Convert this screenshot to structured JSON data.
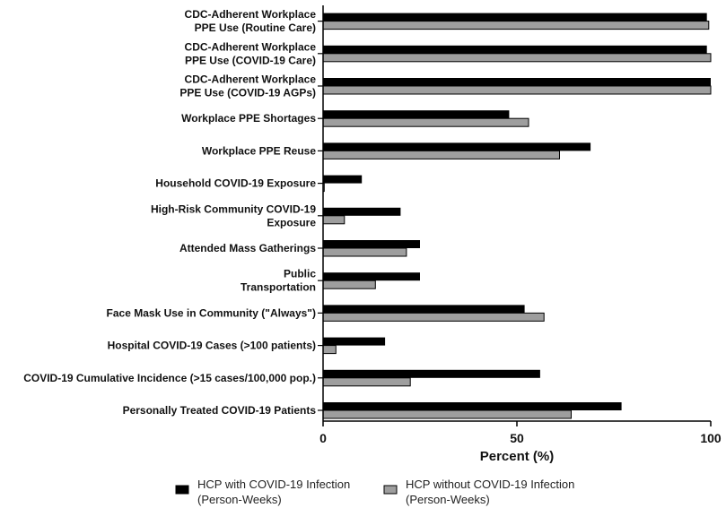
{
  "chart_data": {
    "type": "bar",
    "orientation": "horizontal",
    "categories": [
      [
        "CDC-Adherent Workplace",
        "PPE Use (Routine Care)"
      ],
      [
        "CDC-Adherent Workplace",
        "PPE Use (COVID-19 Care)"
      ],
      [
        "CDC-Adherent Workplace",
        "PPE Use (COVID-19 AGPs)"
      ],
      [
        "Workplace PPE Shortages"
      ],
      [
        "Workplace PPE Reuse"
      ],
      [
        "Household COVID-19 Exposure"
      ],
      [
        "High-Risk Community COVID-19",
        "Exposure"
      ],
      [
        "Attended Mass Gatherings"
      ],
      [
        "Public",
        "Transportation"
      ],
      [
        "Face Mask Use in Community (\"Always\")"
      ],
      [
        "Hospital COVID-19 Cases (>100 patients)"
      ],
      [
        "COVID-19 Cumulative Incidence (>15 cases/100,000 pop.)"
      ],
      [
        "Personally Treated COVID-19 Patients"
      ]
    ],
    "series": [
      {
        "name": [
          "HCP with COVID-19 Infection",
          "(Person-Weeks)"
        ],
        "color": "#000000",
        "values": [
          99,
          99,
          100,
          48,
          69,
          10,
          20,
          25,
          25,
          52,
          16,
          56,
          77
        ]
      },
      {
        "name": [
          "HCP without COVID-19 Infection",
          "(Person-Weeks)"
        ],
        "color": "#9e9e9e",
        "values": [
          99.5,
          100,
          100,
          53,
          61,
          0.3,
          5.5,
          21.5,
          13.5,
          57,
          3.3,
          22.5,
          64
        ]
      }
    ],
    "xlabel": "Percent (%)",
    "xlim": [
      0,
      100
    ],
    "xticks": [
      "0",
      "50",
      "100"
    ],
    "grid": false,
    "legend_position": "bottom"
  }
}
